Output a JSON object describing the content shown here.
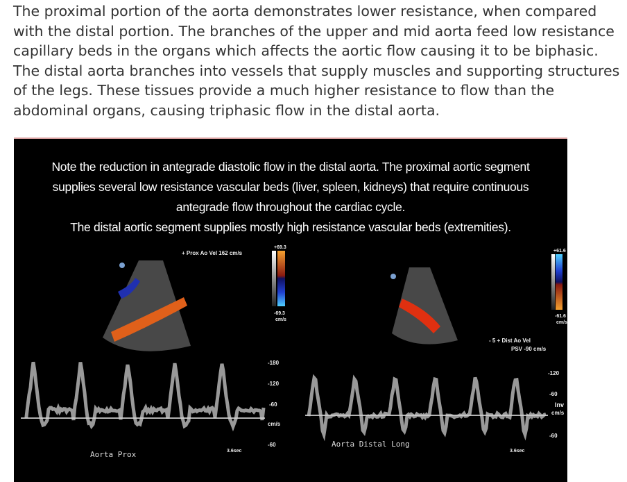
{
  "paragraph": "The proximal portion of the aorta demonstrates lower resistance, when compared with the distal portion. The branches of the upper and mid aorta feed low resistance capillary beds in the organs which affects the aortic flow causing it to be biphasic. The distal aorta branches into vessels that supply muscles and supporting structures of the legs. These tissues provide a much higher resistance to flow than the abdominal organs, causing triphasic flow in the distal aorta.",
  "figure": {
    "caption_lines": [
      "Note the reduction in antegrade diastolic flow in the distal aorta. The proximal aortic segment",
      "supplies several low resistance vascular beds (liver, spleen, kidneys) that require continuous",
      "antegrade flow throughout the cardiac cycle.",
      "The distal aortic segment supplies mostly high resistance vascular beds (extremities)."
    ],
    "left": {
      "measurement": "+ Prox Ao Vel  162 cm/s",
      "color_scale_top": "+69.3",
      "color_scale_bottom": "-69.3",
      "color_scale_unit": "cm/s",
      "scale": [
        "-180",
        "-120",
        "-60",
        "cm/s",
        "-60"
      ],
      "time": "3.6sec",
      "label": "Aorta  Prox"
    },
    "right": {
      "measurement_line1": "-  5  + Dist Ao Vel",
      "measurement_line2": "PSV  -90 cm/s",
      "color_scale_top": "+61.6",
      "color_scale_bottom": "-61.6",
      "color_scale_unit": "cm/s",
      "scale": [
        "-120",
        "-60",
        "Inv",
        "cm/s",
        "-60"
      ],
      "time": "3.6sec",
      "label": "Aorta  Distal  Long"
    }
  }
}
